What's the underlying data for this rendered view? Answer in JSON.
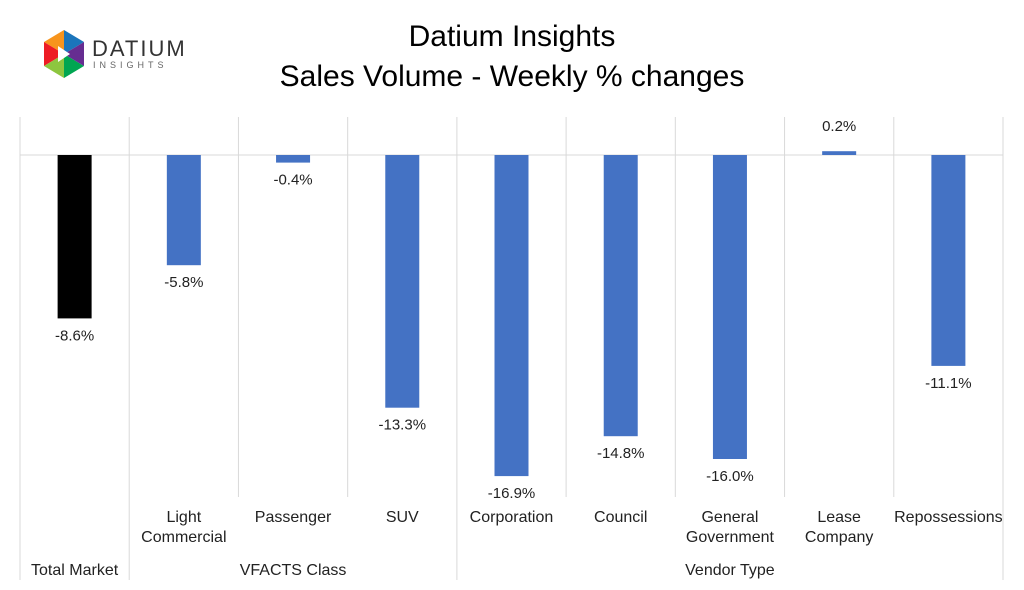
{
  "logo": {
    "name": "DATIUM",
    "tagline": "INSIGHTS"
  },
  "chart_data": {
    "type": "bar",
    "title": "Datium Insights",
    "subtitle": "Sales Volume - Weekly % changes",
    "categories": [
      null,
      "Light Commercial",
      "Passenger",
      "SUV",
      "Corporation",
      "Council",
      "General Government",
      "Lease Company",
      "Repossessions"
    ],
    "groups": [
      {
        "label": "Total Market",
        "span": 1
      },
      {
        "label": "VFACTS Class",
        "span": 3
      },
      {
        "label": "Vendor Type",
        "span": 5
      }
    ],
    "values": [
      -8.6,
      -5.8,
      -0.4,
      -13.3,
      -16.9,
      -14.8,
      -16.0,
      0.2,
      -11.1
    ],
    "value_labels": [
      "-8.6%",
      "-5.8%",
      "-0.4%",
      "-13.3%",
      "-16.9%",
      "-14.8%",
      "-16.0%",
      "0.2%",
      "-11.1%"
    ],
    "colors": [
      "#000000",
      "#4472c4",
      "#4472c4",
      "#4472c4",
      "#4472c4",
      "#4472c4",
      "#4472c4",
      "#4472c4",
      "#4472c4"
    ],
    "ylim": [
      -18,
      2
    ]
  }
}
